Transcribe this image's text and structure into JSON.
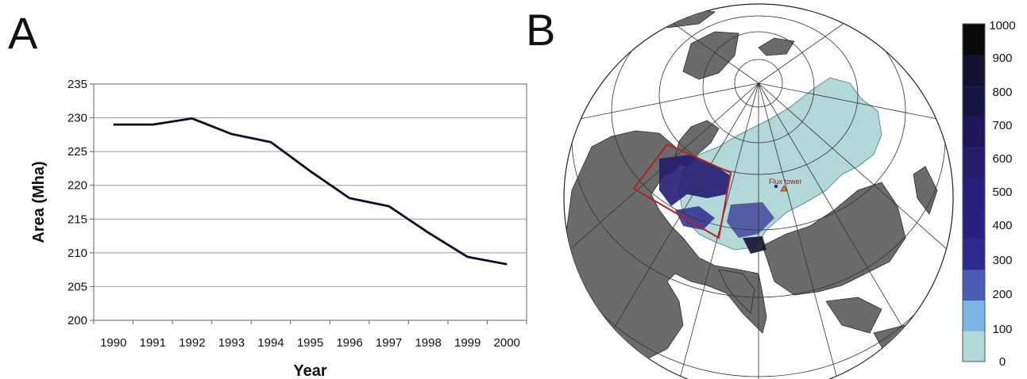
{
  "panels": {
    "a_label": "A",
    "b_label": "B"
  },
  "chart_data": [
    {
      "type": "line",
      "xlabel": "Year",
      "ylabel": "Area (Mha)",
      "x": [
        1990,
        1991,
        1992,
        1993,
        1994,
        1995,
        1996,
        1997,
        1998,
        1999,
        2000
      ],
      "x_tick_labels": [
        "1990",
        "1991",
        "1992",
        "1993",
        "1994",
        "1995",
        "1996",
        "1997",
        "1998",
        "1999",
        "2000"
      ],
      "series": [
        {
          "values": [
            229.0,
            229.0,
            229.9,
            227.6,
            226.4,
            222.1,
            218.1,
            216.9,
            213.0,
            209.4,
            208.3
          ]
        }
      ],
      "ylim": [
        200,
        235
      ],
      "y_ticks": [
        200,
        205,
        210,
        215,
        220,
        225,
        230,
        235
      ],
      "y_tick_labels": [
        "200",
        "205",
        "210",
        "215",
        "220",
        "225",
        "230",
        "235"
      ],
      "grid": true,
      "line_color": "#0d0d2b"
    },
    {
      "type": "heatmap",
      "description_free": true,
      "annotation": "Flux tower",
      "colorbar": {
        "ticks": [
          "0",
          "100",
          "200",
          "300",
          "400",
          "500",
          "600",
          "700",
          "800",
          "900",
          "1000"
        ],
        "colors": [
          "#b2d8d8",
          "#7ab6e6",
          "#4a5cb3",
          "#2c2a8f",
          "#28207e",
          "#27207a",
          "#251c6c",
          "#1e1659",
          "#171545",
          "#121230",
          "#0a0a0a"
        ]
      }
    }
  ]
}
